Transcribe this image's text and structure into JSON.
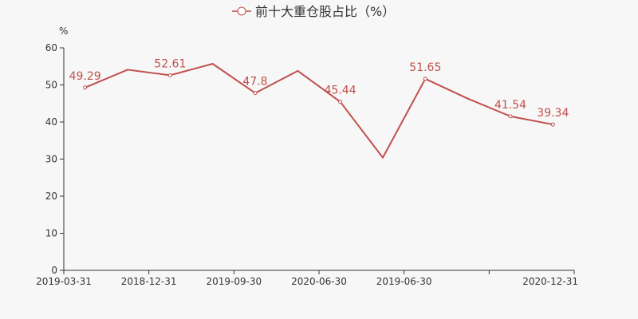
{
  "chart_data": {
    "type": "line",
    "title": "",
    "xlabel": "",
    "ylabel": "%",
    "ylim": [
      0,
      60
    ],
    "yticks": [
      0,
      10,
      20,
      30,
      40,
      50,
      60
    ],
    "grid": false,
    "legend_position": "top-center",
    "color": "#c0504d",
    "x": [
      "2019-03-31",
      "",
      "2018-12-31",
      "",
      "2019-09-30",
      "",
      "2020-06-30",
      "",
      "2019-06-30",
      "",
      "",
      "2020-12-31"
    ],
    "series": [
      {
        "name": "前十大重仓股占比（%）",
        "values": [
          49.29,
          54.1,
          52.61,
          55.7,
          47.8,
          53.8,
          45.44,
          30.4,
          51.65,
          46.3,
          41.54,
          39.34
        ],
        "labels": [
          "49.29",
          "",
          "52.61",
          "",
          "47.8",
          "",
          "45.44",
          "",
          "51.65",
          "",
          "41.54",
          "39.34"
        ]
      }
    ]
  }
}
